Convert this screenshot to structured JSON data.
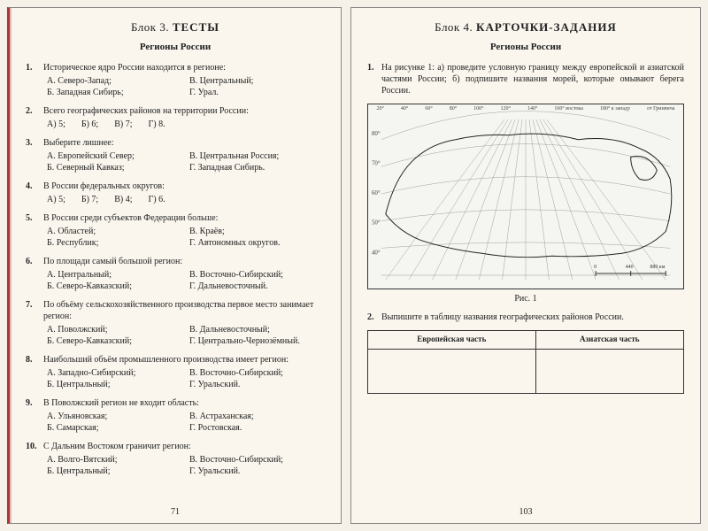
{
  "colors": {
    "paper": "#faf6ee",
    "bg": "#f5f0e8",
    "text": "#222",
    "accent": "#a33",
    "border": "#888",
    "tbl_border": "#333",
    "faint": "#bbb"
  },
  "left": {
    "block_prefix": "Блок 3.",
    "block_title": "ТЕСТЫ",
    "section": "Регионы России",
    "pagenum": "71",
    "questions": [
      {
        "n": "1.",
        "text": "Историческое ядро России находится в регионе:",
        "layout": "grid",
        "opts": [
          [
            "А.",
            "Северо-Запад;"
          ],
          [
            "В.",
            "Центральный;"
          ],
          [
            "Б.",
            "Западная Сибирь;"
          ],
          [
            "Г.",
            "Урал."
          ]
        ]
      },
      {
        "n": "2.",
        "text": "Всего географических районов на территории России:",
        "layout": "row",
        "opts": [
          [
            "А)",
            "5;"
          ],
          [
            "Б)",
            "6;"
          ],
          [
            "В)",
            "7;"
          ],
          [
            "Г)",
            "8."
          ]
        ]
      },
      {
        "n": "3.",
        "text": "Выберите лишнее:",
        "layout": "grid",
        "opts": [
          [
            "А.",
            "Европейский Север;"
          ],
          [
            "В.",
            "Центральная Россия;"
          ],
          [
            "Б.",
            "Северный Кавказ;"
          ],
          [
            "Г.",
            "Западная Сибирь."
          ]
        ]
      },
      {
        "n": "4.",
        "text": "В России федеральных округов:",
        "layout": "row",
        "opts": [
          [
            "А)",
            "5;"
          ],
          [
            "Б)",
            "7;"
          ],
          [
            "В)",
            "4;"
          ],
          [
            "Г)",
            "6."
          ]
        ]
      },
      {
        "n": "5.",
        "text": "В России среди субъектов Федерации больше:",
        "layout": "grid",
        "opts": [
          [
            "А.",
            "Областей;"
          ],
          [
            "В.",
            "Краёв;"
          ],
          [
            "Б.",
            "Республик;"
          ],
          [
            "Г.",
            "Автономных округов."
          ]
        ]
      },
      {
        "n": "6.",
        "text": "По площади самый большой регион:",
        "layout": "grid",
        "opts": [
          [
            "А.",
            "Центральный;"
          ],
          [
            "В.",
            "Восточно-Сибирский;"
          ],
          [
            "Б.",
            "Северо-Кавказский;"
          ],
          [
            "Г.",
            "Дальневосточный."
          ]
        ]
      },
      {
        "n": "7.",
        "text": "По объёму сельскохозяйственного производства первое место занимает регион:",
        "layout": "grid",
        "opts": [
          [
            "А.",
            "Поволжский;"
          ],
          [
            "В.",
            "Дальневосточный;"
          ],
          [
            "Б.",
            "Северо-Кавказский;"
          ],
          [
            "Г.",
            "Центрально-Чернозёмный."
          ]
        ]
      },
      {
        "n": "8.",
        "text": "Наибольший объём промышленного производства имеет регион:",
        "layout": "grid",
        "opts": [
          [
            "А.",
            "Западно-Сибирский;"
          ],
          [
            "В.",
            "Восточно-Сибирский;"
          ],
          [
            "Б.",
            "Центральный;"
          ],
          [
            "Г.",
            "Уральский."
          ]
        ]
      },
      {
        "n": "9.",
        "text": "В Поволжский регион не входит область:",
        "layout": "grid",
        "opts": [
          [
            "А.",
            "Ульяновская;"
          ],
          [
            "В.",
            "Астраханская;"
          ],
          [
            "Б.",
            "Самарская;"
          ],
          [
            "Г.",
            "Ростовская."
          ]
        ]
      },
      {
        "n": "10.",
        "text": "С Дальним Востоком граничит регион:",
        "layout": "grid",
        "opts": [
          [
            "А.",
            "Волго-Вятский;"
          ],
          [
            "В.",
            "Восточно-Сибирский;"
          ],
          [
            "Б.",
            "Центральный;"
          ],
          [
            "Г.",
            "Уральский."
          ]
        ]
      }
    ]
  },
  "right": {
    "block_prefix": "Блок 4.",
    "block_title": "КАРТОЧКИ-ЗАДАНИЯ",
    "section": "Регионы России",
    "pagenum": "103",
    "task1": {
      "n": "1.",
      "text": "На рисунке 1: а) проведите условную границу между европейской и азиатской частями России; б) подпишите названия морей, которые омывают берега России."
    },
    "map": {
      "caption": "Рис. 1",
      "lon_labels": [
        "20°",
        "40°",
        "60°",
        "80°",
        "100°",
        "120°",
        "140°",
        "160° востока",
        "180° к западу",
        "от Гринвича"
      ],
      "lat_labels": [
        "80°",
        "70°",
        "60°",
        "50°",
        "40°"
      ],
      "scale_labels": [
        "0",
        "440",
        "880 км"
      ],
      "outline_stroke": "#333",
      "grid_stroke": "#888",
      "land_fill": "#ffffff",
      "land_stroke": "#222"
    },
    "task2": {
      "n": "2.",
      "text": "Выпишите в таблицу названия географических районов России."
    },
    "table": {
      "headers": [
        "Европейская часть",
        "Азиатская часть"
      ],
      "rows": [
        [
          "",
          ""
        ]
      ]
    }
  }
}
